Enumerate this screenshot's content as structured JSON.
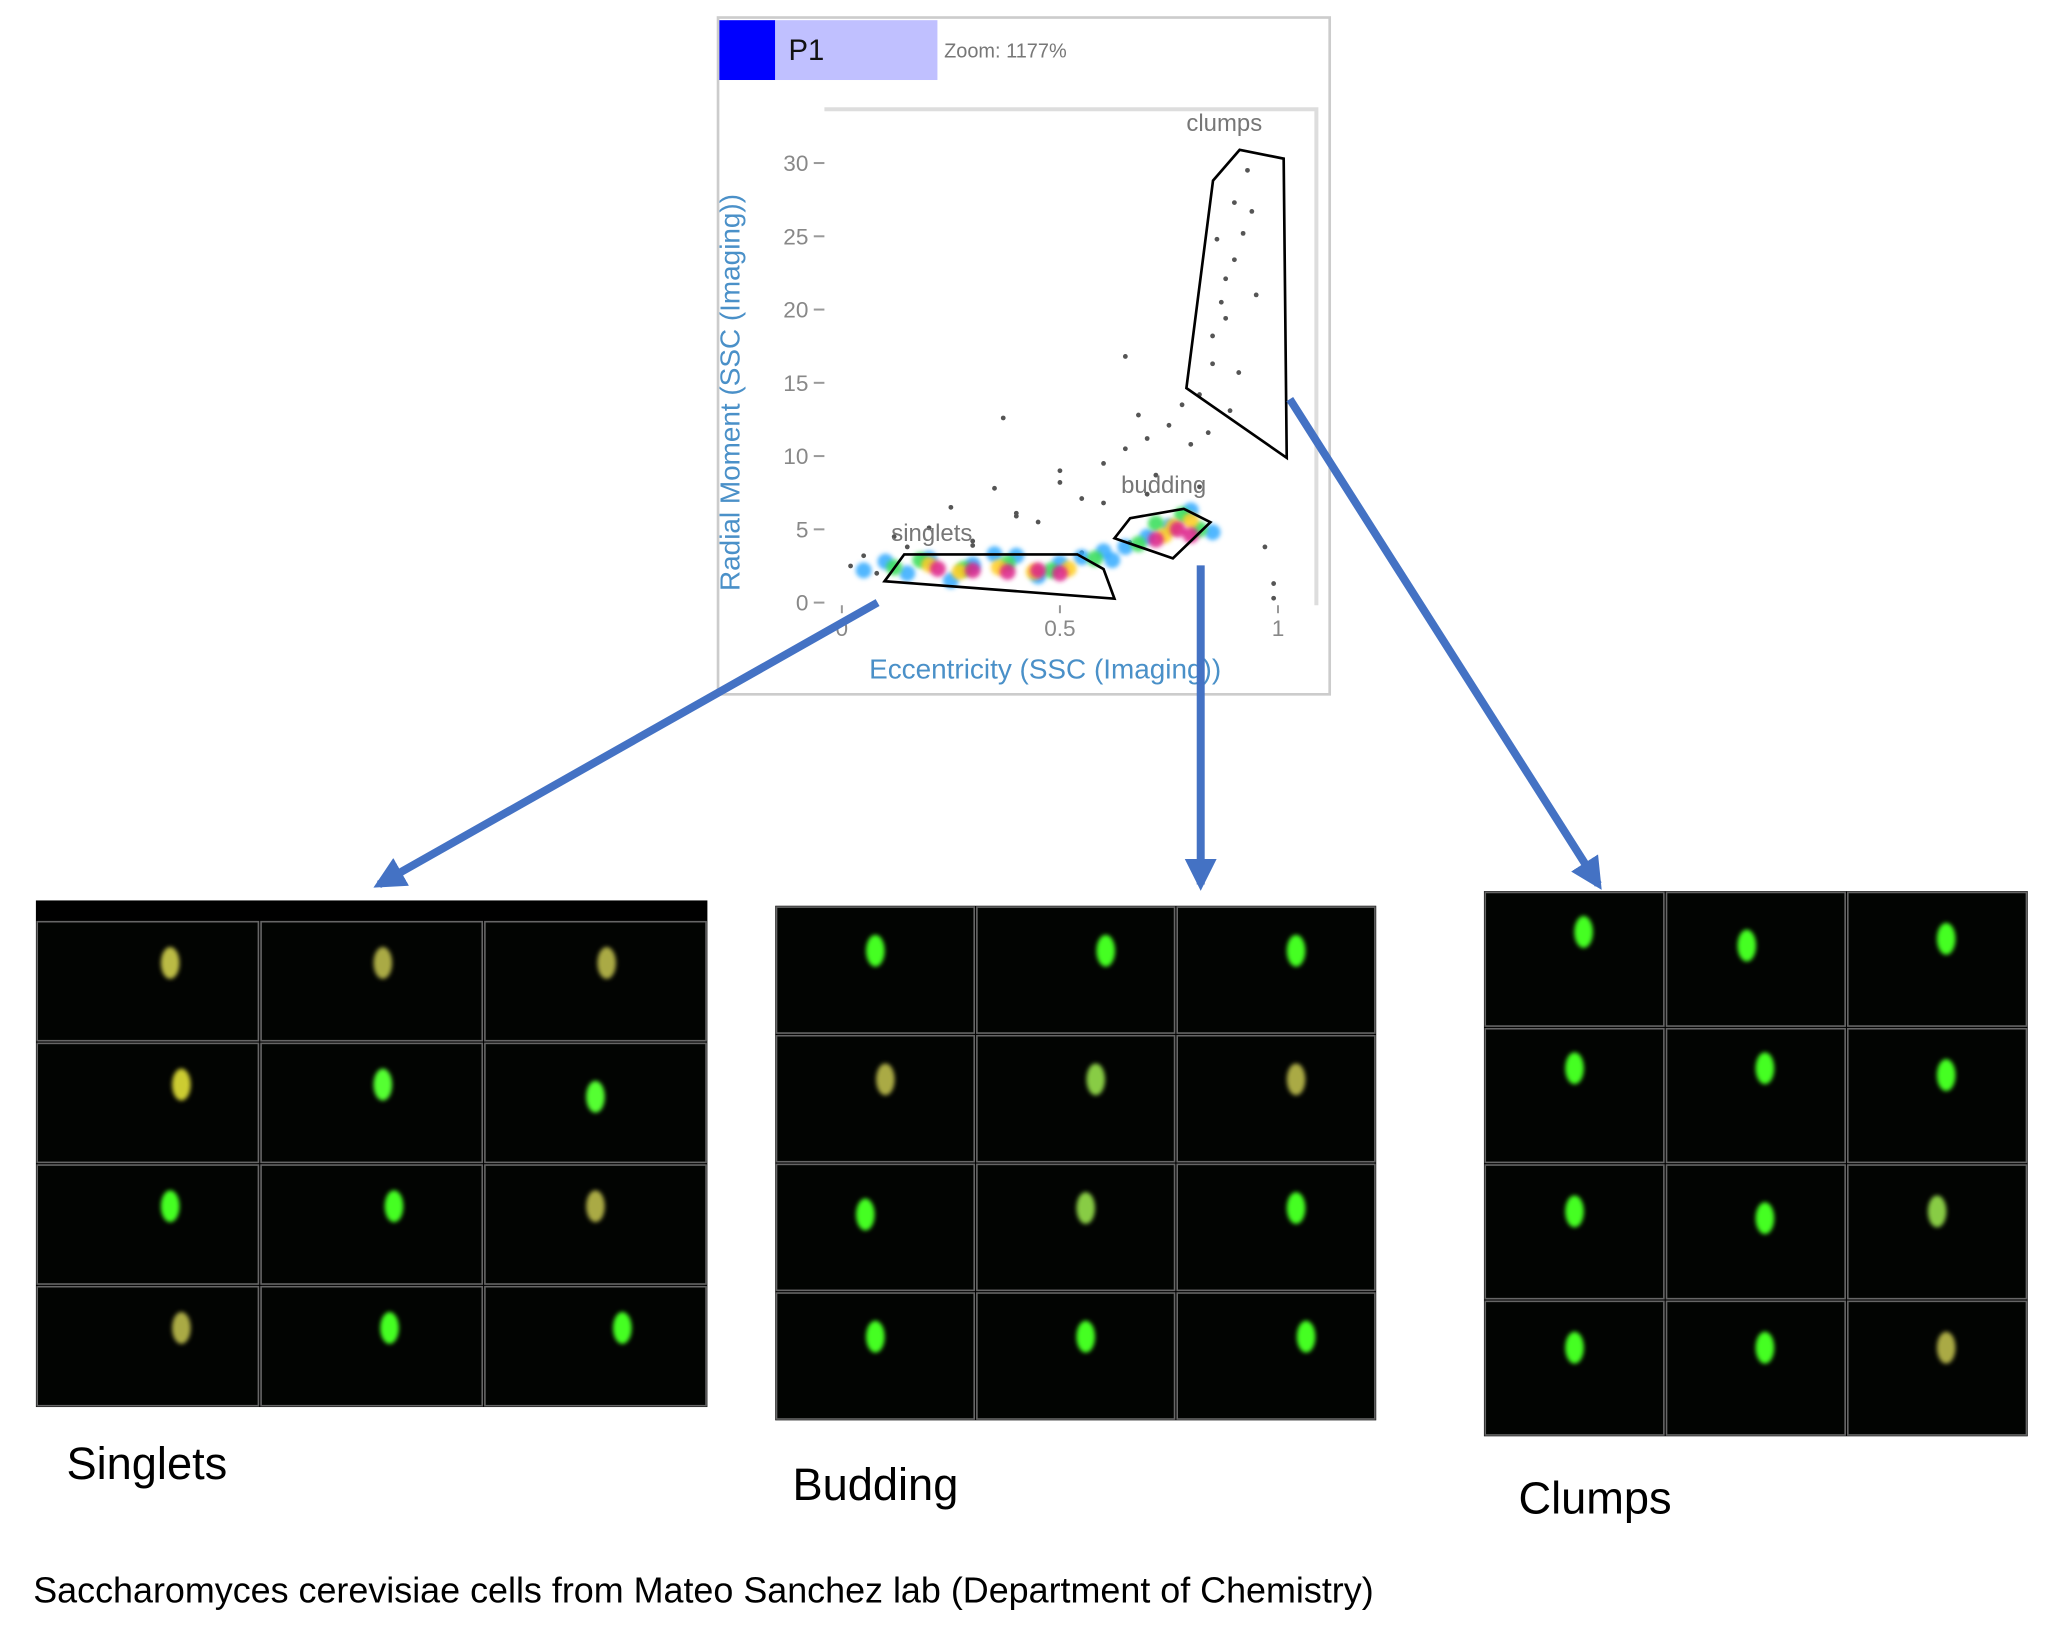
{
  "panel": {
    "name": "P1",
    "zoom": "Zoom: 1177%"
  },
  "chart_data": {
    "type": "scatter",
    "xlabel": "Eccentricity (SSC (Imaging))",
    "ylabel": "Radial Moment (SSC (Imaging))",
    "xlim": [
      -0.04,
      1.088
    ],
    "ylim": [
      -0.18,
      33.67
    ],
    "xticks": [
      0,
      0.5,
      1
    ],
    "yticks": [
      0,
      5,
      10,
      15,
      20,
      25,
      30
    ],
    "series": [
      {
        "color": "#555555",
        "x": [
          0.02,
          0.05,
          0.08,
          0.12,
          0.15,
          0.2,
          0.25,
          0.3,
          0.35,
          0.4,
          0.45,
          0.5,
          0.55,
          0.6,
          0.65,
          0.7,
          0.72,
          0.75,
          0.78,
          0.8,
          0.82,
          0.85,
          0.87,
          0.9,
          0.6,
          0.5,
          0.4,
          0.3,
          0.7,
          0.65,
          0.68,
          0.85,
          0.88,
          0.92,
          0.9,
          0.93,
          0.95,
          0.88,
          0.86,
          0.91,
          0.94,
          0.82,
          0.84,
          0.89,
          0.97,
          0.99,
          0.99,
          0.37,
          0.66,
          0.55
        ],
        "y": [
          2.5,
          3.2,
          2.0,
          4.5,
          3.8,
          5.1,
          6.5,
          4.2,
          7.8,
          6.1,
          5.5,
          8.2,
          7.1,
          9.5,
          10.5,
          11.2,
          8.7,
          12.1,
          13.5,
          10.8,
          14.2,
          16.3,
          20.5,
          23.4,
          6.8,
          9.0,
          5.9,
          3.9,
          7.4,
          16.8,
          12.8,
          18.2,
          22.1,
          25.2,
          27.3,
          29.5,
          21.0,
          19.4,
          24.8,
          15.7,
          26.7,
          7.9,
          11.6,
          13.1,
          3.8,
          1.3,
          0.3,
          12.6,
          4.1,
          3.4
        ]
      },
      {
        "color": "#33aaff",
        "x": [
          0.05,
          0.1,
          0.15,
          0.2,
          0.3,
          0.4,
          0.5,
          0.55,
          0.6,
          0.65,
          0.7,
          0.75,
          0.8,
          0.85,
          0.62,
          0.45,
          0.35,
          0.25
        ],
        "y": [
          2.2,
          2.8,
          2.0,
          3.0,
          2.6,
          3.2,
          2.7,
          3.1,
          3.5,
          3.8,
          4.5,
          5.2,
          6.3,
          4.8,
          2.9,
          1.8,
          3.3,
          1.5
        ]
      },
      {
        "color": "#33dd55",
        "x": [
          0.12,
          0.18,
          0.28,
          0.38,
          0.48,
          0.58,
          0.68,
          0.72,
          0.78,
          0.82
        ],
        "y": [
          2.4,
          2.9,
          2.3,
          2.7,
          2.2,
          3.0,
          4.0,
          5.4,
          6.0,
          5.0
        ]
      },
      {
        "color": "#ffcc22",
        "x": [
          0.2,
          0.27,
          0.36,
          0.44,
          0.52,
          0.74,
          0.8,
          0.76
        ],
        "y": [
          2.6,
          2.1,
          2.4,
          2.1,
          2.3,
          4.6,
          5.6,
          5.2
        ]
      },
      {
        "color": "#dd2288",
        "x": [
          0.22,
          0.3,
          0.38,
          0.45,
          0.5,
          0.77,
          0.8,
          0.72
        ],
        "y": [
          2.3,
          2.2,
          2.1,
          2.2,
          2.0,
          5.0,
          4.6,
          4.3
        ]
      }
    ],
    "gates": [
      {
        "name": "singlets",
        "x": [
          0.098,
          0.143,
          0.54,
          0.6,
          0.625
        ],
        "y": [
          1.46,
          3.29,
          3.29,
          2.29,
          0.27
        ]
      },
      {
        "name": "budding",
        "x": [
          0.625,
          0.661,
          0.784,
          0.845,
          0.759
        ],
        "y": [
          4.39,
          5.76,
          6.4,
          5.49,
          3.02
        ]
      },
      {
        "name": "clumps",
        "x": [
          0.79,
          0.851,
          0.912,
          1.013,
          1.02
        ],
        "y": [
          14.64,
          28.8,
          30.9,
          30.3,
          9.88
        ]
      }
    ]
  },
  "groups": [
    "Singlets",
    "Budding",
    "Clumps"
  ],
  "caption": "Saccharomyces cerevisiae cells from Mateo Sanchez lab (Department of Chemistry)"
}
